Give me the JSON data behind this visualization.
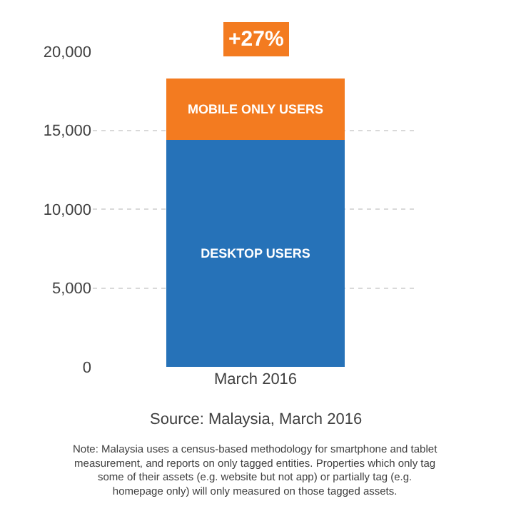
{
  "chart_data": {
    "type": "bar",
    "stacked": true,
    "categories": [
      "March 2016"
    ],
    "series": [
      {
        "name": "DESKTOP USERS",
        "color": "#2672b8",
        "values": [
          14400
        ]
      },
      {
        "name": "MOBILE ONLY USERS",
        "color": "#f37b20",
        "values": [
          3900
        ]
      }
    ],
    "ylim": [
      0,
      20000
    ],
    "yticks": [
      0,
      {
        "value": 5000,
        "label": "5,000"
      },
      {
        "value": 10000,
        "label": "10,000"
      },
      {
        "value": 15000,
        "label": "15,000"
      },
      {
        "value": 20000,
        "label": "20,000"
      }
    ],
    "grid": "y",
    "legend": false,
    "annotations": [
      "+27%",
      "Source: Malaysia, March 2016",
      "Note: Malaysia uses a census-based methodology for smartphone and tablet measurement, and reports on only tagged entities. Properties which only tag some of their assets (e.g. website but not app) or partially tag (e.g. homepage only) will only measured on those tagged assets."
    ]
  }
}
